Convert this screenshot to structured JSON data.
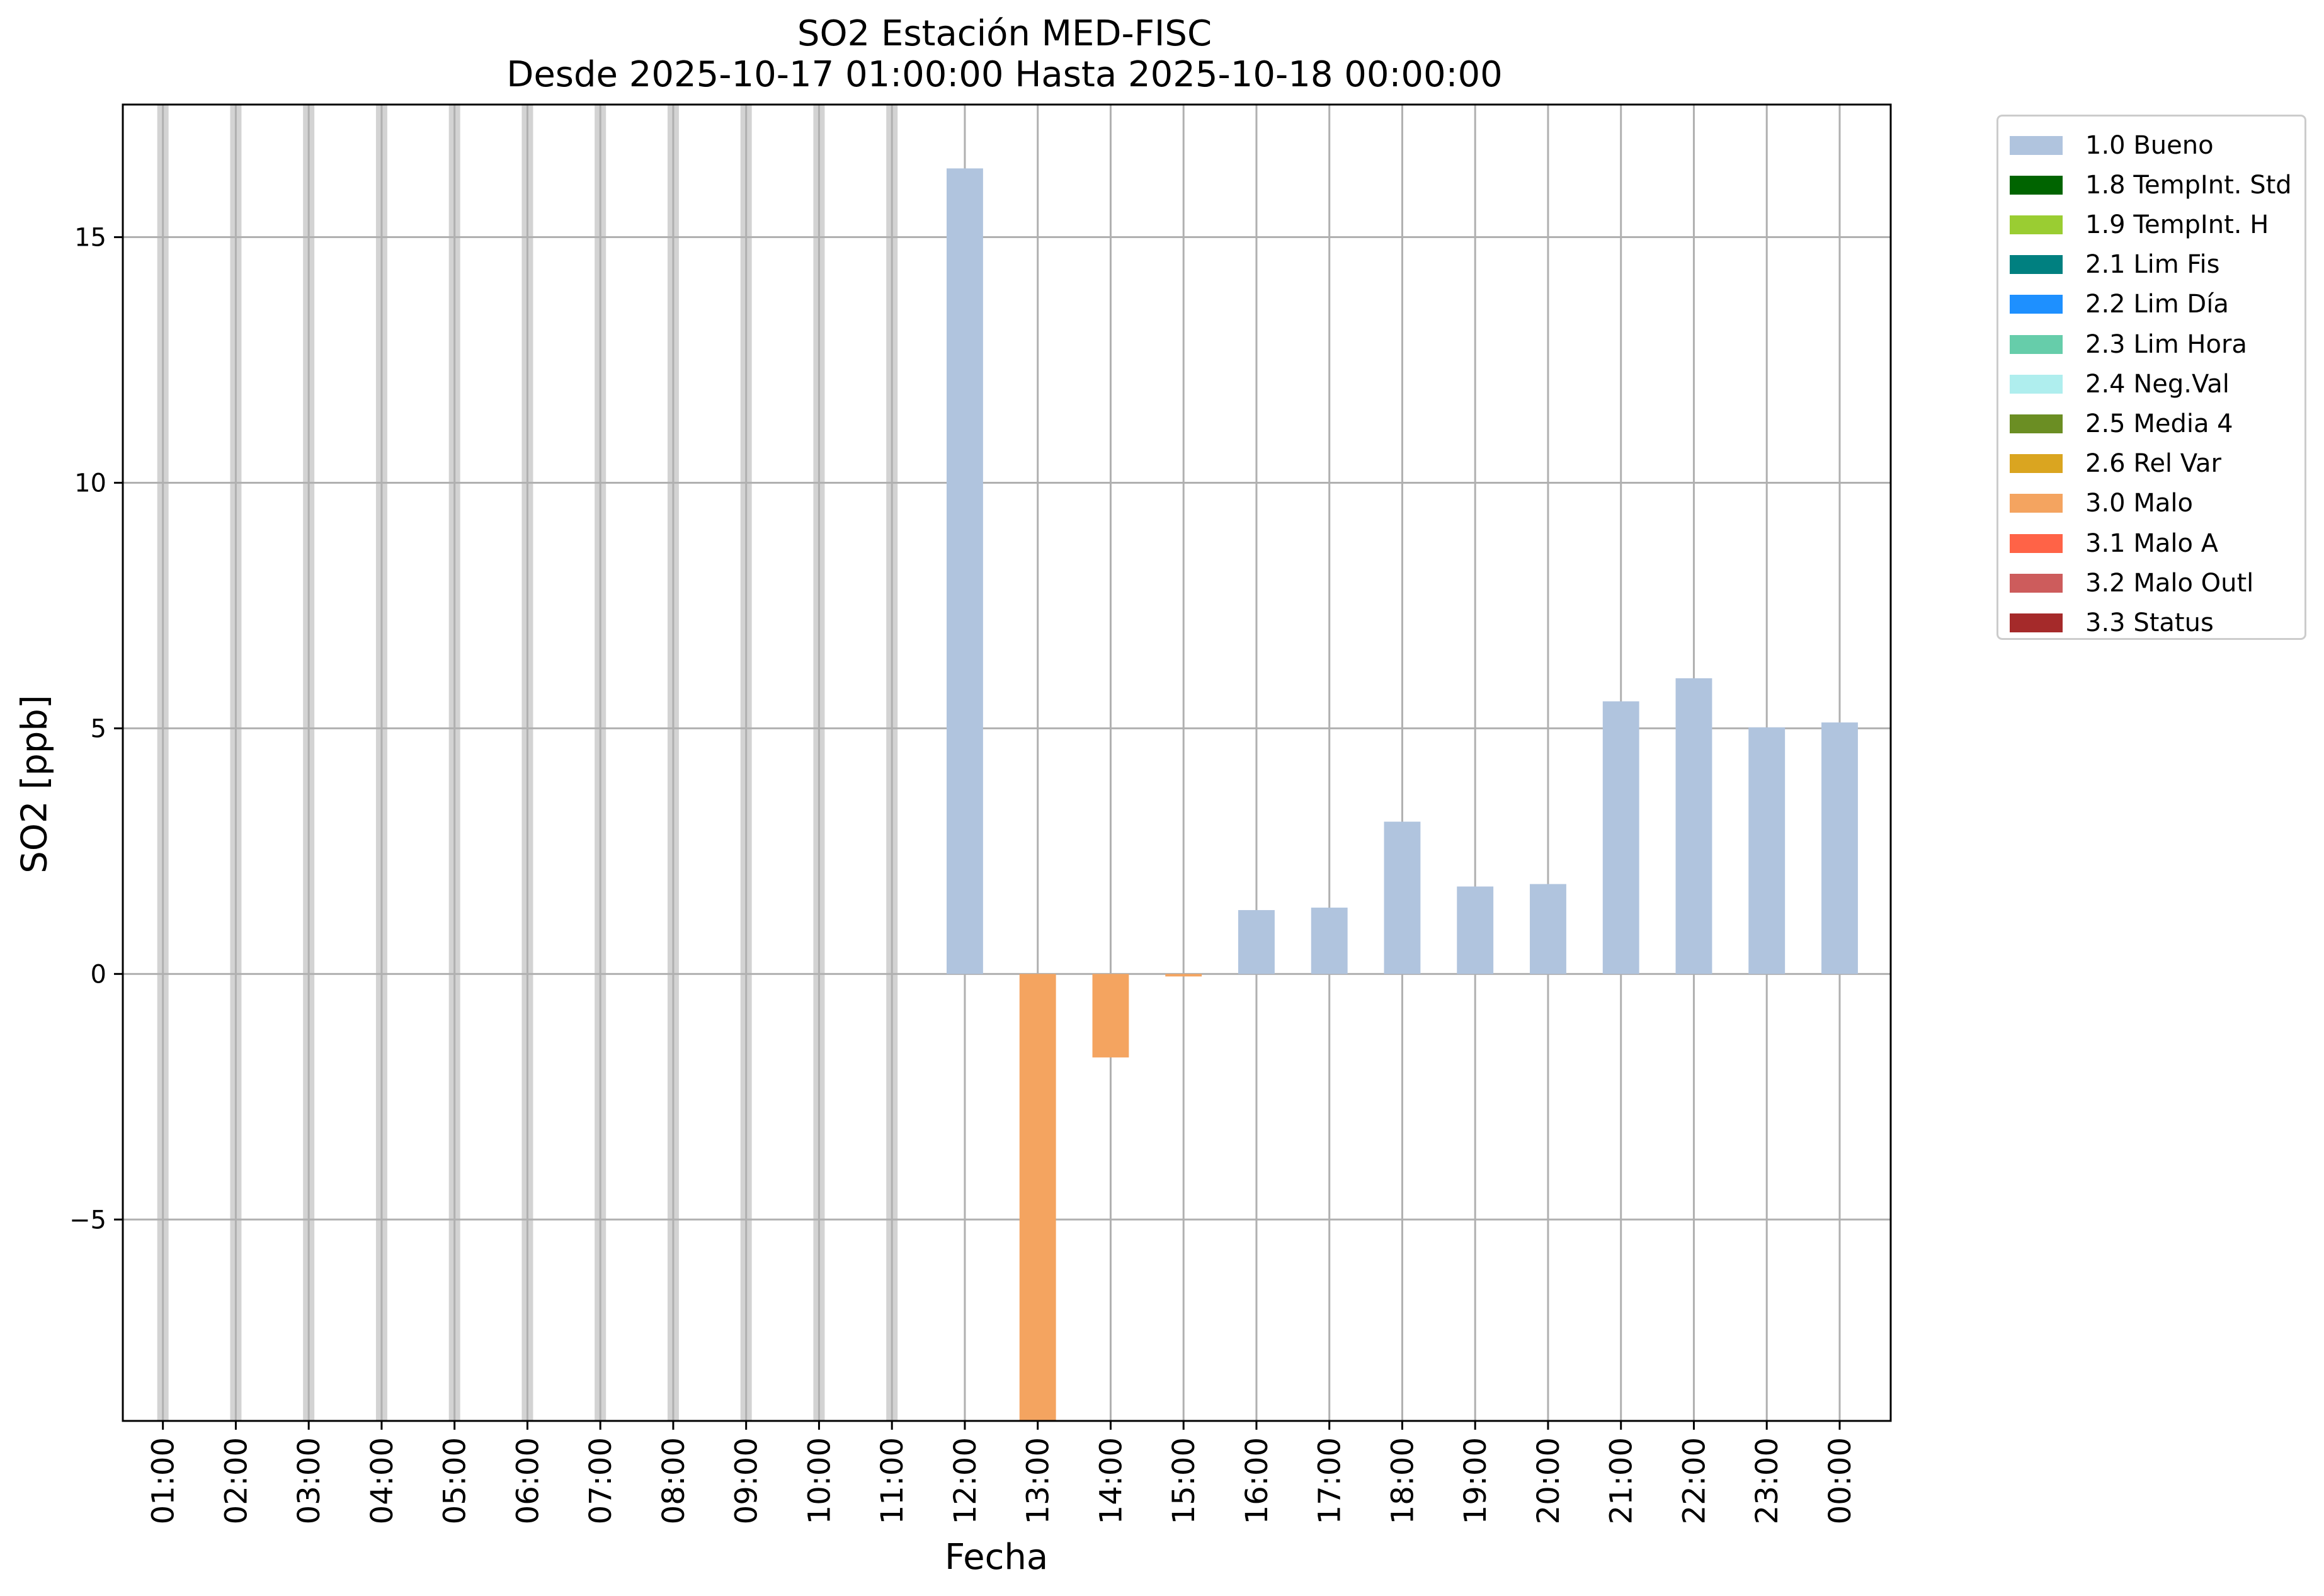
{
  "chart_data": {
    "type": "bar",
    "title": "SO2 Estación MED-FISC",
    "subtitle": "Desde 2025-10-17 01:00:00 Hasta 2025-10-18 00:00:00",
    "xlabel": "Fecha",
    "ylabel": "SO2 [ppb]",
    "ylim": [
      -9.1,
      17.7
    ],
    "yticks": [
      -5,
      0,
      5,
      10,
      15
    ],
    "ytick_labels": [
      "−5",
      "0",
      "5",
      "10",
      "15"
    ],
    "grid": true,
    "legend_position": "outside-top-right",
    "categories": [
      "01:00",
      "02:00",
      "03:00",
      "04:00",
      "05:00",
      "06:00",
      "07:00",
      "08:00",
      "09:00",
      "10:00",
      "11:00",
      "12:00",
      "13:00",
      "14:00",
      "15:00",
      "16:00",
      "17:00",
      "18:00",
      "19:00",
      "20:00",
      "21:00",
      "22:00",
      "23:00",
      "00:00"
    ],
    "missing": [
      true,
      true,
      true,
      true,
      true,
      true,
      true,
      true,
      true,
      true,
      true,
      false,
      false,
      false,
      false,
      false,
      false,
      false,
      false,
      false,
      false,
      false,
      false,
      false
    ],
    "values": [
      null,
      null,
      null,
      null,
      null,
      null,
      null,
      null,
      null,
      null,
      null,
      16.4,
      -9.1,
      -1.7,
      -0.05,
      1.3,
      1.35,
      3.1,
      1.78,
      1.83,
      5.55,
      6.02,
      5.02,
      5.12
    ],
    "flags": [
      null,
      null,
      null,
      null,
      null,
      null,
      null,
      null,
      null,
      null,
      null,
      "1.0 Bueno",
      "3.0 Malo",
      "3.0 Malo",
      "3.0 Malo",
      "1.0 Bueno",
      "1.0 Bueno",
      "1.0 Bueno",
      "1.0 Bueno",
      "1.0 Bueno",
      "1.0 Bueno",
      "1.0 Bueno",
      "1.0 Bueno",
      "1.0 Bueno"
    ],
    "legend": [
      {
        "name": "1.0 Bueno",
        "color": "#b0c4de"
      },
      {
        "name": "1.8 TempInt. Std",
        "color": "#006400"
      },
      {
        "name": "1.9 TempInt. H",
        "color": "#9acd32"
      },
      {
        "name": "2.1 Lim Fis",
        "color": "#008080"
      },
      {
        "name": "2.2 Lim Día",
        "color": "#1e90ff"
      },
      {
        "name": "2.3 Lim Hora",
        "color": "#66cdaa"
      },
      {
        "name": "2.4 Neg.Val",
        "color": "#afeeee"
      },
      {
        "name": "2.5 Media 4",
        "color": "#6b8e23"
      },
      {
        "name": "2.6 Rel Var",
        "color": "#daa520"
      },
      {
        "name": "3.0 Malo",
        "color": "#f4a460"
      },
      {
        "name": "3.1 Malo A",
        "color": "#ff6347"
      },
      {
        "name": "3.2 Malo Outl",
        "color": "#cd5c5c"
      },
      {
        "name": "3.3 Status",
        "color": "#a52a2a"
      }
    ],
    "missing_color": "#d3d3d3"
  }
}
